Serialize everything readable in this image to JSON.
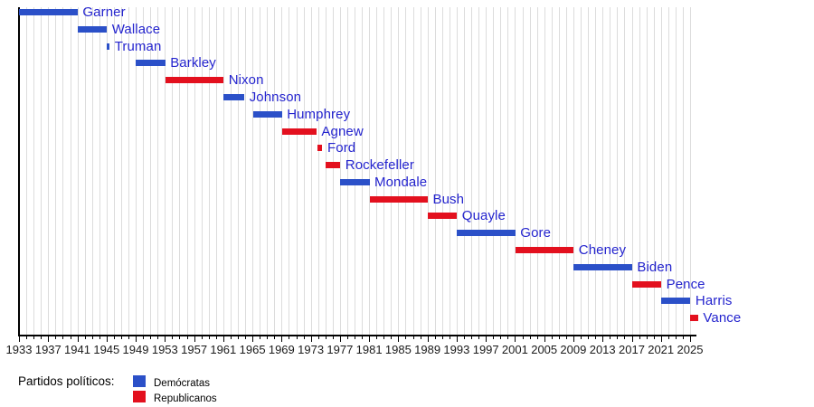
{
  "colors": {
    "background": "#ffffff",
    "gridline": "#dcdcdc",
    "axis": "#000000",
    "tick_text": "#1a1a1a",
    "bar_label_text": "#2424ce",
    "democrat_blue": "#2b50c8",
    "republican_red": "#e3101e"
  },
  "chart_data": {
    "type": "bar",
    "variant": "horizontal-timeline-gantt",
    "title": "",
    "xlabel": "",
    "ylabel": "",
    "grid": "vertical gridlines, one per year",
    "x_axis": {
      "start_year": 1933,
      "end_year": 2026,
      "minor_tick_every_years": 1,
      "labeled_years": [
        1933,
        1937,
        1941,
        1945,
        1949,
        1953,
        1957,
        1961,
        1965,
        1969,
        1973,
        1977,
        1981,
        1985,
        1989,
        1993,
        1997,
        2001,
        2005,
        2009,
        2013,
        2017,
        2021,
        2025
      ]
    },
    "parties": {
      "D": {
        "label": "Demócratas",
        "color": "#2b50c8"
      },
      "R": {
        "label": "Republicanos",
        "color": "#e3101e"
      }
    },
    "legend": {
      "title": "Partidos políticos:",
      "position": "bottom-left"
    },
    "bars": [
      {
        "name": "Garner",
        "party": "D",
        "start": 1933.0,
        "end": 1941.05
      },
      {
        "name": "Wallace",
        "party": "D",
        "start": 1941.05,
        "end": 1945.05
      },
      {
        "name": "Truman",
        "party": "D",
        "start": 1945.05,
        "end": 1945.3
      },
      {
        "name": "Barkley",
        "party": "D",
        "start": 1949.05,
        "end": 1953.05
      },
      {
        "name": "Nixon",
        "party": "R",
        "start": 1953.05,
        "end": 1961.05
      },
      {
        "name": "Johnson",
        "party": "D",
        "start": 1961.05,
        "end": 1963.9
      },
      {
        "name": "Humphrey",
        "party": "D",
        "start": 1965.05,
        "end": 1969.05
      },
      {
        "name": "Agnew",
        "party": "R",
        "start": 1969.05,
        "end": 1973.78
      },
      {
        "name": "Ford",
        "party": "R",
        "start": 1973.93,
        "end": 1974.6
      },
      {
        "name": "Rockefeller",
        "party": "R",
        "start": 1974.97,
        "end": 1977.05
      },
      {
        "name": "Mondale",
        "party": "D",
        "start": 1977.05,
        "end": 1981.05
      },
      {
        "name": "Bush",
        "party": "R",
        "start": 1981.05,
        "end": 1989.05
      },
      {
        "name": "Quayle",
        "party": "R",
        "start": 1989.05,
        "end": 1993.05
      },
      {
        "name": "Gore",
        "party": "D",
        "start": 1993.05,
        "end": 2001.05
      },
      {
        "name": "Cheney",
        "party": "R",
        "start": 2001.05,
        "end": 2009.05
      },
      {
        "name": "Biden",
        "party": "D",
        "start": 2009.05,
        "end": 2017.05
      },
      {
        "name": "Pence",
        "party": "R",
        "start": 2017.05,
        "end": 2021.05
      },
      {
        "name": "Harris",
        "party": "D",
        "start": 2021.05,
        "end": 2025.05
      },
      {
        "name": "Vance",
        "party": "R",
        "start": 2025.05,
        "end": 2026.1
      }
    ]
  }
}
